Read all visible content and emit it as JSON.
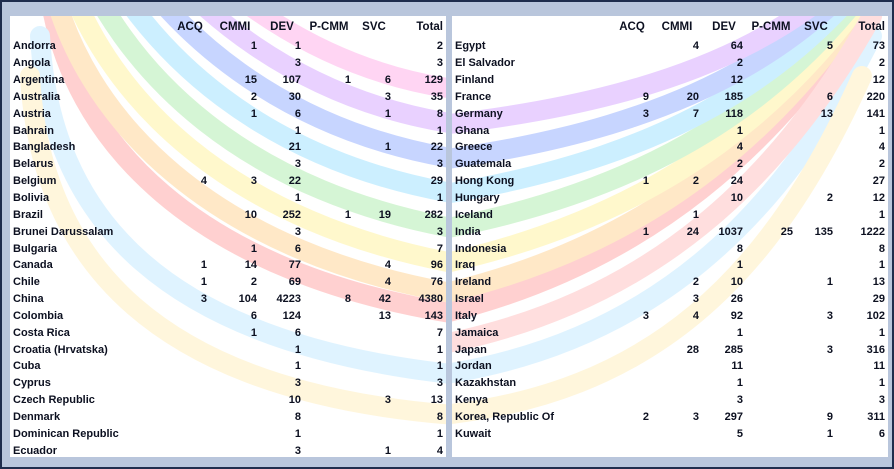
{
  "columns": [
    "ACQ",
    "CMMI",
    "DEV",
    "P-CMM",
    "SVC",
    "Total"
  ],
  "left_table": [
    {
      "country": "Andorra",
      "acq": "",
      "cmmi": "1",
      "dev": "1",
      "pcmm": "",
      "svc": "",
      "total": "2"
    },
    {
      "country": "Angola",
      "acq": "",
      "cmmi": "",
      "dev": "3",
      "pcmm": "",
      "svc": "",
      "total": "3"
    },
    {
      "country": "Argentina",
      "acq": "",
      "cmmi": "15",
      "dev": "107",
      "pcmm": "1",
      "svc": "6",
      "total": "129"
    },
    {
      "country": "Australia",
      "acq": "",
      "cmmi": "2",
      "dev": "30",
      "pcmm": "",
      "svc": "3",
      "total": "35"
    },
    {
      "country": "Austria",
      "acq": "",
      "cmmi": "1",
      "dev": "6",
      "pcmm": "",
      "svc": "1",
      "total": "8"
    },
    {
      "country": "Bahrain",
      "acq": "",
      "cmmi": "",
      "dev": "1",
      "pcmm": "",
      "svc": "",
      "total": "1"
    },
    {
      "country": "Bangladesh",
      "acq": "",
      "cmmi": "",
      "dev": "21",
      "pcmm": "",
      "svc": "1",
      "total": "22"
    },
    {
      "country": "Belarus",
      "acq": "",
      "cmmi": "",
      "dev": "3",
      "pcmm": "",
      "svc": "",
      "total": "3"
    },
    {
      "country": "Belgium",
      "acq": "4",
      "cmmi": "3",
      "dev": "22",
      "pcmm": "",
      "svc": "",
      "total": "29"
    },
    {
      "country": "Bolivia",
      "acq": "",
      "cmmi": "",
      "dev": "1",
      "pcmm": "",
      "svc": "",
      "total": "1"
    },
    {
      "country": "Brazil",
      "acq": "",
      "cmmi": "10",
      "dev": "252",
      "pcmm": "1",
      "svc": "19",
      "total": "282"
    },
    {
      "country": "Brunei Darussalam",
      "acq": "",
      "cmmi": "",
      "dev": "3",
      "pcmm": "",
      "svc": "",
      "total": "3"
    },
    {
      "country": "Bulgaria",
      "acq": "",
      "cmmi": "1",
      "dev": "6",
      "pcmm": "",
      "svc": "",
      "total": "7"
    },
    {
      "country": "Canada",
      "acq": "1",
      "cmmi": "14",
      "dev": "77",
      "pcmm": "",
      "svc": "4",
      "total": "96"
    },
    {
      "country": "Chile",
      "acq": "1",
      "cmmi": "2",
      "dev": "69",
      "pcmm": "",
      "svc": "4",
      "total": "76"
    },
    {
      "country": "China",
      "acq": "3",
      "cmmi": "104",
      "dev": "4223",
      "pcmm": "8",
      "svc": "42",
      "total": "4380"
    },
    {
      "country": "Colombia",
      "acq": "",
      "cmmi": "6",
      "dev": "124",
      "pcmm": "",
      "svc": "13",
      "total": "143"
    },
    {
      "country": "Costa Rica",
      "acq": "",
      "cmmi": "1",
      "dev": "6",
      "pcmm": "",
      "svc": "",
      "total": "7"
    },
    {
      "country": "Croatia (Hrvatska)",
      "acq": "",
      "cmmi": "",
      "dev": "1",
      "pcmm": "",
      "svc": "",
      "total": "1"
    },
    {
      "country": "Cuba",
      "acq": "",
      "cmmi": "",
      "dev": "1",
      "pcmm": "",
      "svc": "",
      "total": "1"
    },
    {
      "country": "Cyprus",
      "acq": "",
      "cmmi": "",
      "dev": "3",
      "pcmm": "",
      "svc": "",
      "total": "3"
    },
    {
      "country": "Czech Republic",
      "acq": "",
      "cmmi": "",
      "dev": "10",
      "pcmm": "",
      "svc": "3",
      "total": "13"
    },
    {
      "country": "Denmark",
      "acq": "",
      "cmmi": "",
      "dev": "8",
      "pcmm": "",
      "svc": "",
      "total": "8"
    },
    {
      "country": "Dominican Republic",
      "acq": "",
      "cmmi": "",
      "dev": "1",
      "pcmm": "",
      "svc": "",
      "total": "1"
    },
    {
      "country": "Ecuador",
      "acq": "",
      "cmmi": "",
      "dev": "3",
      "pcmm": "",
      "svc": "1",
      "total": "4"
    }
  ],
  "right_table": [
    {
      "country": "Egypt",
      "acq": "",
      "cmmi": "4",
      "dev": "64",
      "pcmm": "",
      "svc": "5",
      "total": "73"
    },
    {
      "country": "El Salvador",
      "acq": "",
      "cmmi": "",
      "dev": "2",
      "pcmm": "",
      "svc": "",
      "total": "2"
    },
    {
      "country": "Finland",
      "acq": "",
      "cmmi": "",
      "dev": "12",
      "pcmm": "",
      "svc": "",
      "total": "12"
    },
    {
      "country": "France",
      "acq": "9",
      "cmmi": "20",
      "dev": "185",
      "pcmm": "",
      "svc": "6",
      "total": "220"
    },
    {
      "country": "Germany",
      "acq": "3",
      "cmmi": "7",
      "dev": "118",
      "pcmm": "",
      "svc": "13",
      "total": "141"
    },
    {
      "country": "Ghana",
      "acq": "",
      "cmmi": "",
      "dev": "1",
      "pcmm": "",
      "svc": "",
      "total": "1"
    },
    {
      "country": "Greece",
      "acq": "",
      "cmmi": "",
      "dev": "4",
      "pcmm": "",
      "svc": "",
      "total": "4"
    },
    {
      "country": "Guatemala",
      "acq": "",
      "cmmi": "",
      "dev": "2",
      "pcmm": "",
      "svc": "",
      "total": "2"
    },
    {
      "country": "Hong Kong",
      "acq": "1",
      "cmmi": "2",
      "dev": "24",
      "pcmm": "",
      "svc": "",
      "total": "27"
    },
    {
      "country": "Hungary",
      "acq": "",
      "cmmi": "",
      "dev": "10",
      "pcmm": "",
      "svc": "2",
      "total": "12"
    },
    {
      "country": "Iceland",
      "acq": "",
      "cmmi": "1",
      "dev": "",
      "pcmm": "",
      "svc": "",
      "total": "1"
    },
    {
      "country": "India",
      "acq": "1",
      "cmmi": "24",
      "dev": "1037",
      "pcmm": "25",
      "svc": "135",
      "total": "1222"
    },
    {
      "country": "Indonesia",
      "acq": "",
      "cmmi": "",
      "dev": "8",
      "pcmm": "",
      "svc": "",
      "total": "8"
    },
    {
      "country": "Iraq",
      "acq": "",
      "cmmi": "",
      "dev": "1",
      "pcmm": "",
      "svc": "",
      "total": "1"
    },
    {
      "country": "Ireland",
      "acq": "",
      "cmmi": "2",
      "dev": "10",
      "pcmm": "",
      "svc": "1",
      "total": "13"
    },
    {
      "country": "Israel",
      "acq": "",
      "cmmi": "3",
      "dev": "26",
      "pcmm": "",
      "svc": "",
      "total": "29"
    },
    {
      "country": "Italy",
      "acq": "3",
      "cmmi": "4",
      "dev": "92",
      "pcmm": "",
      "svc": "3",
      "total": "102"
    },
    {
      "country": "Jamaica",
      "acq": "",
      "cmmi": "",
      "dev": "1",
      "pcmm": "",
      "svc": "",
      "total": "1"
    },
    {
      "country": "Japan",
      "acq": "",
      "cmmi": "28",
      "dev": "285",
      "pcmm": "",
      "svc": "3",
      "total": "316"
    },
    {
      "country": "Jordan",
      "acq": "",
      "cmmi": "",
      "dev": "11",
      "pcmm": "",
      "svc": "",
      "total": "11"
    },
    {
      "country": "Kazakhstan",
      "acq": "",
      "cmmi": "",
      "dev": "1",
      "pcmm": "",
      "svc": "",
      "total": "1"
    },
    {
      "country": "Kenya",
      "acq": "",
      "cmmi": "",
      "dev": "3",
      "pcmm": "",
      "svc": "",
      "total": "3"
    },
    {
      "country": "Korea, Republic Of",
      "acq": "2",
      "cmmi": "3",
      "dev": "297",
      "pcmm": "",
      "svc": "9",
      "total": "311"
    },
    {
      "country": "Kuwait",
      "acq": "",
      "cmmi": "",
      "dev": "5",
      "pcmm": "",
      "svc": "1",
      "total": "6"
    }
  ]
}
